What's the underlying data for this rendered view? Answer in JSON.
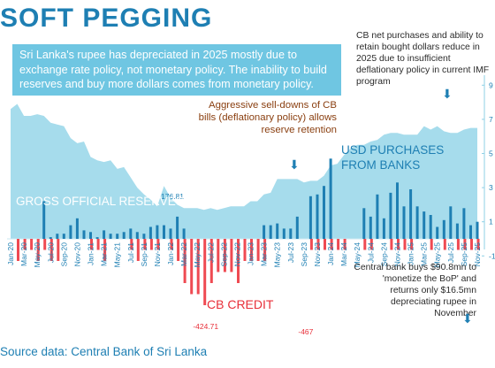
{
  "title": "SOFT PEGGING",
  "subtitle": "Sri Lanka's rupee has depreciated in 2025 mostly due to exchange rate policy, not monetary policy. The inability to build reserves and buy more dollars comes from monetary policy.",
  "annotations": {
    "top_right": "CB net purchases and ability to retain bought dollars reduce in 2025 due to insufficient deflationary policy in current IMF program",
    "mid": "Aggressive sell-downs of CB bills (deflationary policy) allows reserve retention",
    "bottom_right": "Central bank buys $90.8mn to 'monetize the BoP' and returns only $16.5mn depreciating rupee in November",
    "arrow_glyph": "⬇"
  },
  "labels": {
    "usd_purchases": "USD PURCHASES FROM BANKS",
    "gross_reserves": "GROSS OFFICIAL RESERVES",
    "cb_credit": "CB CREDIT"
  },
  "source": "Source data: Central Bank of Sri Lanka",
  "colors": {
    "reserves_area": "#a6dcec",
    "purchases_bar": "#1e7fb3",
    "credit_bar": "#ef4a52",
    "axis_text": "#1e7fb3",
    "month_label": "#1e7fb3",
    "credit_label_text": "#e8303a"
  },
  "chart_data": {
    "type": "bar",
    "x": [
      "Jan-20",
      "Feb-20",
      "Mar-20",
      "Apr-20",
      "May-20",
      "Jun-20",
      "Jul-20",
      "Aug-20",
      "Sep-20",
      "Oct-20",
      "Nov-20",
      "Dec-20",
      "Jan-21",
      "Feb-21",
      "Mar-21",
      "Apr-21",
      "May-21",
      "Jun-21",
      "Jul-21",
      "Aug-21",
      "Sep-21",
      "Oct-21",
      "Nov-21",
      "Dec-21",
      "Jan-22",
      "Feb-22",
      "Mar-22",
      "Apr-22",
      "May-22",
      "Jun-22",
      "Jul-22",
      "Aug-22",
      "Sep-22",
      "Oct-22",
      "Nov-22",
      "Dec-22",
      "Jan-23",
      "Feb-23",
      "Mar-23",
      "Apr-23",
      "May-23",
      "Jun-23",
      "Jul-23",
      "Aug-23",
      "Sep-23",
      "Oct-23",
      "Nov-23",
      "Dec-23",
      "Jan-24",
      "Feb-24",
      "Mar-24",
      "Apr-24",
      "May-24",
      "Jun-24",
      "Jul-24",
      "Aug-24",
      "Sep-24",
      "Oct-24",
      "Nov-24",
      "Dec-24",
      "Jan-25",
      "Feb-25",
      "Mar-25",
      "Apr-25",
      "May-25",
      "Jun-25",
      "Jul-25",
      "Aug-25",
      "Sep-25",
      "Oct-25",
      "Nov-25"
    ],
    "x_tick_labels": [
      "Jan-20",
      "Mar-20",
      "May-20",
      "Jul-20",
      "Sep-20",
      "Nov-20",
      "Jan-21",
      "Mar-21",
      "May-21",
      "Jul-21",
      "Sep-21",
      "Nov-21",
      "Jan-22",
      "Mar-22",
      "May-22",
      "Jul-22",
      "Sep-22",
      "Nov-22",
      "Jan-23",
      "Mar-23",
      "May-23",
      "Jul-23",
      "Sep-23",
      "Nov-23",
      "Jan-24",
      "Mar-24",
      "May-24",
      "Jul-24",
      "Sep-24",
      "Nov-24",
      "Jan-25",
      "Mar-25",
      "May-25",
      "Jul-25",
      "Sep-25",
      "Nov-25"
    ],
    "series": [
      {
        "name": "GROSS OFFICIAL RESERVES",
        "kind": "area",
        "values": [
          7.6,
          7.9,
          7.2,
          7.2,
          7.3,
          7.2,
          6.8,
          6.7,
          6.6,
          5.9,
          5.6,
          5.7,
          4.8,
          4.6,
          4.5,
          4.6,
          4.1,
          4.2,
          3.6,
          3.0,
          2.6,
          2.3,
          1.9,
          3.1,
          2.4,
          2.0,
          1.8,
          1.8,
          1.8,
          1.7,
          1.8,
          1.7,
          1.8,
          1.9,
          1.9,
          1.9,
          2.2,
          2.2,
          2.6,
          2.7,
          3.5,
          3.5,
          3.5,
          3.5,
          3.3,
          3.4,
          3.4,
          3.7,
          4.3,
          4.4,
          4.9,
          5.3,
          5.5,
          5.5,
          5.7,
          5.8,
          6.1,
          6.2,
          6.2,
          6.1,
          6.1,
          6.1,
          6.6,
          6.4,
          6.6,
          6.3,
          6.2,
          6.2,
          6.4,
          6.5,
          6.5
        ]
      },
      {
        "name": "USD PURCHASES FROM BANKS",
        "kind": "bar",
        "values": [
          0,
          0,
          0,
          0,
          0,
          2.2,
          0.1,
          0.3,
          0.3,
          0.8,
          1.2,
          0.5,
          0.4,
          0.1,
          0.5,
          0.3,
          0.3,
          0.4,
          0.6,
          0.4,
          0.3,
          0.7,
          0.8,
          0.8,
          0.6,
          1.3,
          0.6,
          0,
          0,
          0,
          0,
          0,
          0,
          0,
          0,
          0,
          0,
          0,
          0.8,
          0.8,
          0.9,
          0.6,
          0.6,
          1.3,
          0,
          2.5,
          2.6,
          3.1,
          4.7,
          0,
          0,
          0,
          0,
          1.8,
          1.3,
          2.6,
          1.2,
          2.7,
          3.3,
          1.9,
          2.9,
          1.9,
          1.6,
          1.4,
          0.7,
          1.1,
          1.9,
          0.9,
          1.8,
          0.8,
          1.0
        ]
      },
      {
        "name": "CB CREDIT",
        "kind": "bar",
        "values": [
          0,
          -2,
          -1,
          -1,
          -2,
          -1,
          -2,
          -2,
          0,
          0,
          0,
          0,
          -1,
          -1,
          -2,
          0,
          0,
          0,
          -1,
          -2,
          -1,
          -1,
          -1,
          0,
          -1,
          -2,
          -4,
          -5,
          -5,
          -6,
          -4,
          -3,
          -3,
          -3,
          -4,
          -2,
          -2,
          -2,
          -2,
          0,
          0,
          0,
          0,
          0,
          0,
          -1,
          -1,
          -1,
          -1,
          -1,
          -1,
          0,
          0,
          -1,
          -1,
          0,
          0,
          -1,
          -1,
          -1,
          -1,
          0,
          0,
          -1,
          0,
          -1,
          0,
          -1,
          -1,
          -1,
          -1
        ]
      }
    ],
    "data_labels": [
      {
        "x": "Jan-22",
        "text": "176.81"
      },
      {
        "x": "Jun-22",
        "text": "-424.71"
      },
      {
        "x": "Sep-23",
        "text": "-467"
      }
    ],
    "y_axis_right": {
      "ticks": [
        "9",
        "7",
        "5",
        "3",
        "1",
        "-1"
      ]
    },
    "y_ranges": {
      "reserves_usd_bn": [
        -1,
        9
      ],
      "flows_usd_mn": [
        -2000,
        1000
      ]
    }
  }
}
